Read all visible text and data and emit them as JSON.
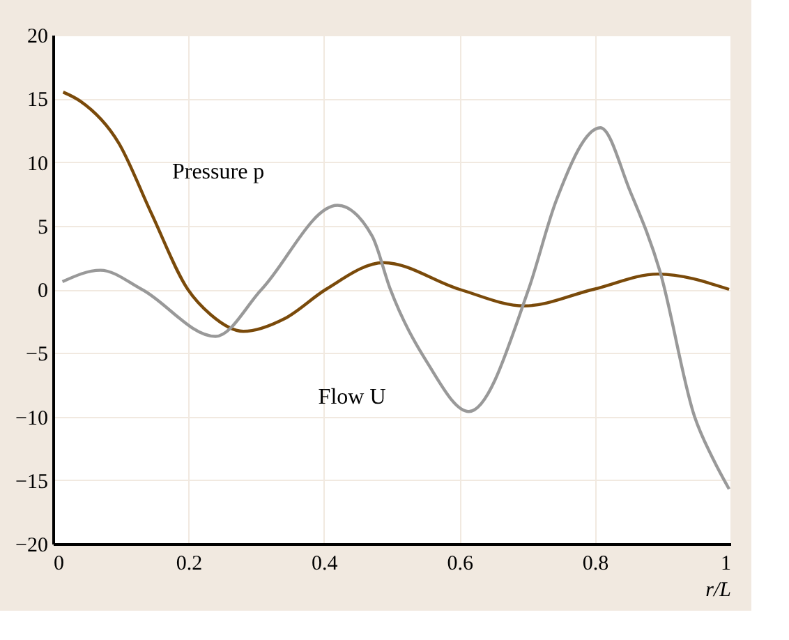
{
  "chart_data": {
    "type": "line",
    "xlabel": "r/L",
    "xlim": [
      0,
      1
    ],
    "xticks": [
      0,
      0.2,
      0.4,
      0.6,
      0.8,
      1
    ],
    "ylim": [
      -20,
      20
    ],
    "yticks": [
      -20,
      -15,
      -10,
      -5,
      0,
      5,
      10,
      15,
      20
    ],
    "grid": true,
    "marker": "none",
    "line_style": "solid",
    "series": [
      {
        "color": "#7a4a0a",
        "x": [
          0.015,
          0.04,
          0.097,
          0.145,
          0.199,
          0.233,
          0.281,
          0.342,
          0.403,
          0.488,
          0.6,
          0.696,
          0.798,
          0.893,
          0.998
        ],
        "values": [
          15.5,
          14.8,
          11.5,
          6.0,
          0,
          -2.0,
          -3.3,
          -2.3,
          0,
          2.1,
          0,
          -1.3,
          0,
          1.2,
          0
        ]
      },
      {
        "color": "#999999",
        "x": [
          0.014,
          0.07,
          0.131,
          0.24,
          0.308,
          0.42,
          0.471,
          0.498,
          0.553,
          0.614,
          0.702,
          0.743,
          0.808,
          0.852,
          0.896,
          0.947,
          0.975,
          0.998
        ],
        "values": [
          0.6,
          1.5,
          0,
          -3.7,
          0,
          6.6,
          4.2,
          0,
          -5.8,
          -9.6,
          0,
          7.0,
          12.7,
          7.7,
          1.4,
          -10.0,
          -13.4,
          -15.7
        ]
      }
    ],
    "annotations": [
      {
        "text": "Pressure p",
        "x": 0.145,
        "y": 6.0
      },
      {
        "text": "Flow U",
        "x": 0.553,
        "y": -5.8
      }
    ]
  }
}
